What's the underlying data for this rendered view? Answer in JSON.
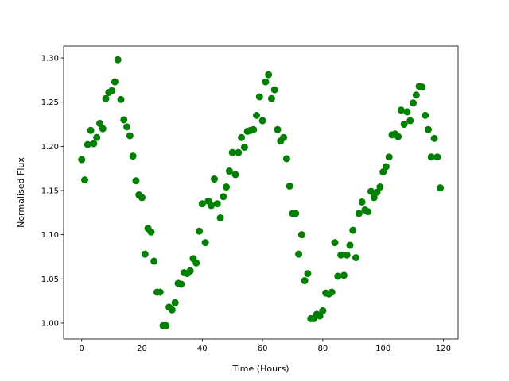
{
  "chart_data": {
    "type": "scatter",
    "x_label": "Time (Hours)",
    "y_label": "Normalised Flux",
    "x": [
      0,
      1,
      2,
      3,
      4,
      5,
      6,
      7,
      8,
      9,
      10,
      11,
      12,
      13,
      14,
      15,
      16,
      17,
      18,
      19,
      20,
      21,
      22,
      23,
      24,
      25,
      26,
      27,
      28,
      29,
      30,
      31,
      32,
      33,
      34,
      35,
      36,
      37,
      38,
      39,
      40,
      41,
      42,
      43,
      44,
      45,
      46,
      47,
      48,
      49,
      50,
      51,
      52,
      53,
      54,
      55,
      56,
      57,
      58,
      59,
      60,
      61,
      62,
      63,
      64,
      65,
      66,
      67,
      68,
      69,
      70,
      71,
      72,
      73,
      74,
      75,
      76,
      77,
      78,
      79,
      80,
      81,
      82,
      83,
      84,
      85,
      86,
      87,
      88,
      89,
      90,
      91,
      92,
      93,
      94,
      95,
      96,
      97,
      98,
      99,
      100,
      101,
      102,
      103,
      104,
      105,
      106,
      107,
      108,
      109,
      110,
      111,
      112,
      113,
      114,
      115,
      116,
      117,
      118,
      119
    ],
    "values": [
      1.185,
      1.162,
      1.202,
      1.218,
      1.203,
      1.21,
      1.226,
      1.22,
      1.254,
      1.261,
      1.263,
      1.273,
      1.298,
      1.253,
      1.23,
      1.222,
      1.212,
      1.189,
      1.161,
      1.145,
      1.142,
      1.078,
      1.107,
      1.103,
      1.07,
      1.035,
      1.035,
      0.997,
      0.997,
      1.018,
      1.015,
      1.023,
      1.045,
      1.044,
      1.057,
      1.056,
      1.059,
      1.073,
      1.068,
      1.104,
      1.135,
      1.091,
      1.138,
      1.133,
      1.163,
      1.135,
      1.119,
      1.143,
      1.154,
      1.172,
      1.193,
      1.168,
      1.193,
      1.21,
      1.199,
      1.217,
      1.218,
      1.219,
      1.235,
      1.256,
      1.229,
      1.273,
      1.281,
      1.254,
      1.264,
      1.219,
      1.206,
      1.21,
      1.186,
      1.155,
      1.124,
      1.124,
      1.078,
      1.1,
      1.048,
      1.056,
      1.005,
      1.005,
      1.01,
      1.008,
      1.014,
      1.034,
      1.033,
      1.035,
      1.091,
      1.053,
      1.077,
      1.054,
      1.077,
      1.088,
      1.105,
      1.074,
      1.124,
      1.137,
      1.128,
      1.126,
      1.149,
      1.142,
      1.148,
      1.154,
      1.171,
      1.177,
      1.188,
      1.213,
      1.214,
      1.211,
      1.241,
      1.225,
      1.239,
      1.229,
      1.249,
      1.258,
      1.268,
      1.267,
      1.235,
      1.219,
      1.188,
      1.209,
      1.188,
      1.153
    ],
    "color": "#008000",
    "xlim": [
      -6,
      124.9
    ],
    "xticks": [
      0,
      20,
      40,
      60,
      80,
      100,
      120
    ],
    "ylim": [
      0.982,
      1.3135
    ],
    "yticks": [
      {
        "value": 1.0,
        "label": "1.00"
      },
      {
        "value": 1.05,
        "label": "1.05"
      },
      {
        "value": 1.1,
        "label": "1.10"
      },
      {
        "value": 1.15,
        "label": "1.15"
      },
      {
        "value": 1.2,
        "label": "1.20"
      },
      {
        "value": 1.25,
        "label": "1.25"
      },
      {
        "value": 1.3,
        "label": "1.30"
      }
    ]
  }
}
